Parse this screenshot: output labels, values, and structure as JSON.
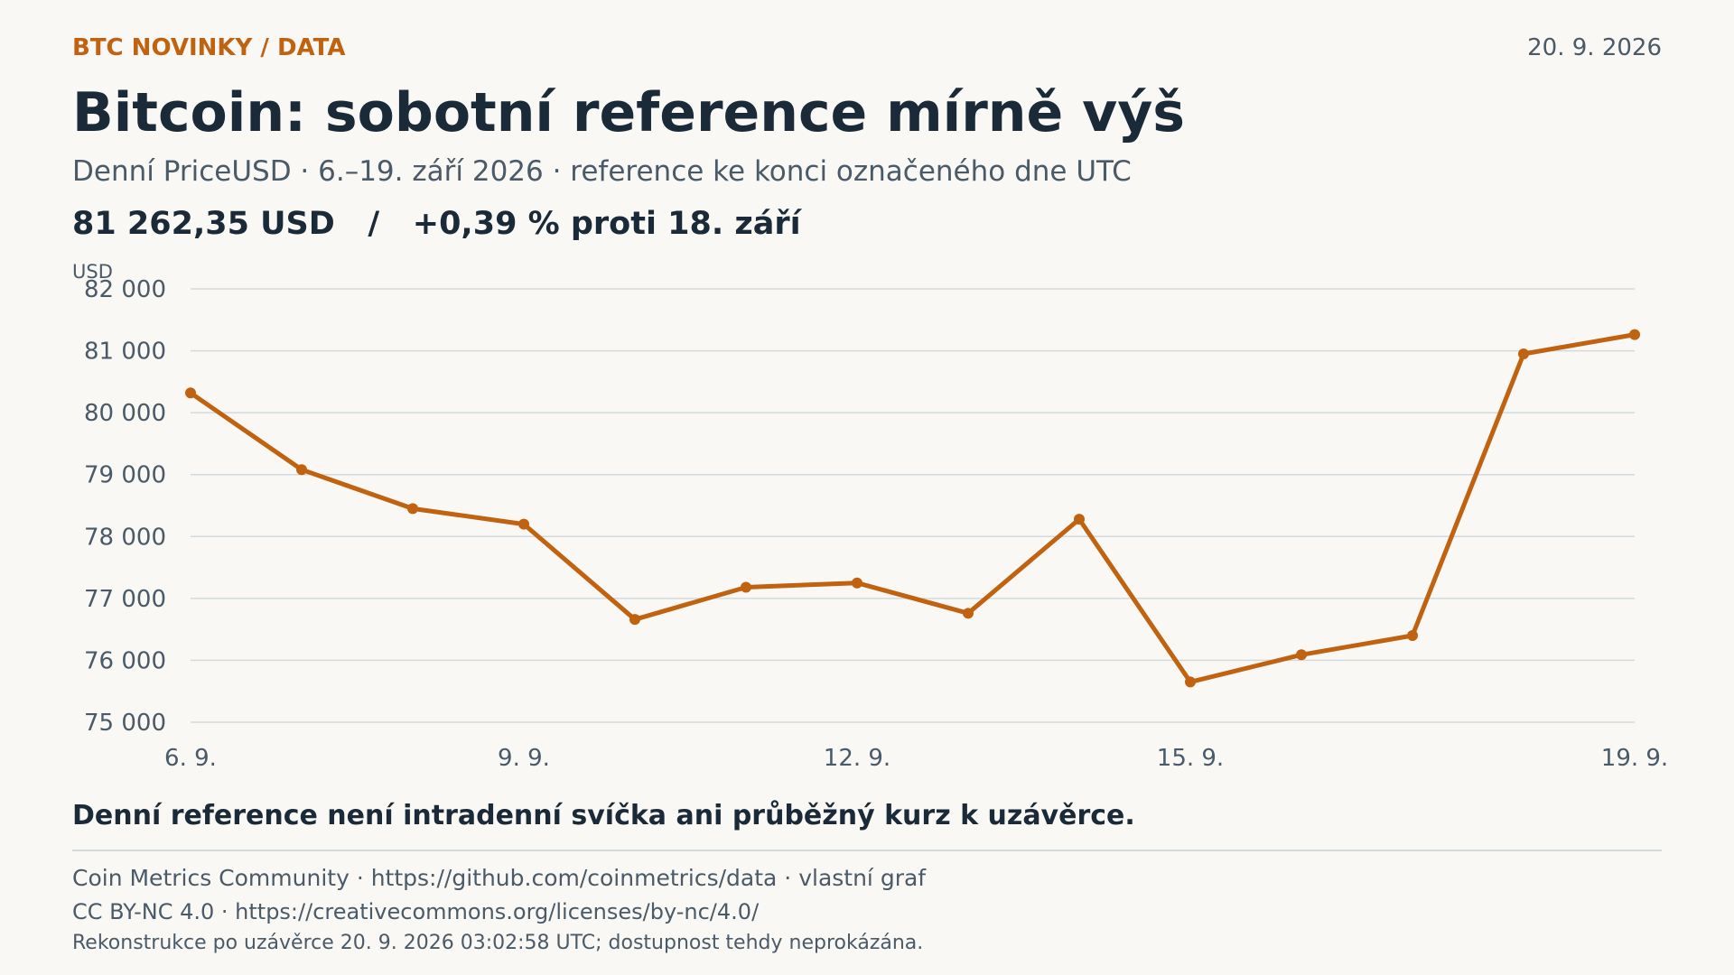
{
  "header": {
    "kicker": "BTC NOVINKY / DATA",
    "date": "20. 9. 2026",
    "title": "Bitcoin: sobotní reference mírně výš",
    "subtitle": "Denní PriceUSD · 6.–19. září 2026 · reference ke konci označeného dne UTC",
    "headline_value": "81 262,35 USD",
    "headline_separator": "/",
    "headline_change": "+0,39 % proti 18. září"
  },
  "chart_data": {
    "type": "line",
    "ylabel": "USD",
    "xlabel": "",
    "ylim": [
      75000,
      82000
    ],
    "yticks": [
      {
        "value": 82000,
        "label": "82 000"
      },
      {
        "value": 81000,
        "label": "81 000"
      },
      {
        "value": 80000,
        "label": "80 000"
      },
      {
        "value": 79000,
        "label": "79 000"
      },
      {
        "value": 78000,
        "label": "78 000"
      },
      {
        "value": 77000,
        "label": "77 000"
      },
      {
        "value": 76000,
        "label": "76 000"
      },
      {
        "value": 75000,
        "label": "75 000"
      }
    ],
    "x": [
      "2026-09-06",
      "2026-09-07",
      "2026-09-08",
      "2026-09-09",
      "2026-09-10",
      "2026-09-11",
      "2026-09-12",
      "2026-09-13",
      "2026-09-14",
      "2026-09-15",
      "2026-09-16",
      "2026-09-17",
      "2026-09-18",
      "2026-09-19"
    ],
    "xticks": [
      {
        "index": 0,
        "label": "6. 9."
      },
      {
        "index": 3,
        "label": "9. 9."
      },
      {
        "index": 6,
        "label": "12. 9."
      },
      {
        "index": 9,
        "label": "15. 9."
      },
      {
        "index": 13,
        "label": "19. 9."
      }
    ],
    "series": [
      {
        "values": [
          80320,
          79080,
          78450,
          78200,
          76660,
          77180,
          77250,
          76760,
          78280,
          75650,
          76090,
          76400,
          80950,
          81262.35
        ],
        "color": "#c0620f"
      }
    ],
    "grid": true,
    "grid_color": "#d3dadd"
  },
  "footer": {
    "note": "Denní reference není intradenní svíčka ani průběžný kurz k uzávěrce.",
    "source": "Coin Metrics Community · https://github.com/coinmetrics/data · vlastní graf",
    "license": "CC BY-NC 4.0 · https://creativecommons.org/licenses/by-nc/4.0/",
    "reconstruction": "Rekonstrukce po uzávěrce 20. 9. 2026 03:02:58 UTC; dostupnost tehdy neprokázána."
  }
}
